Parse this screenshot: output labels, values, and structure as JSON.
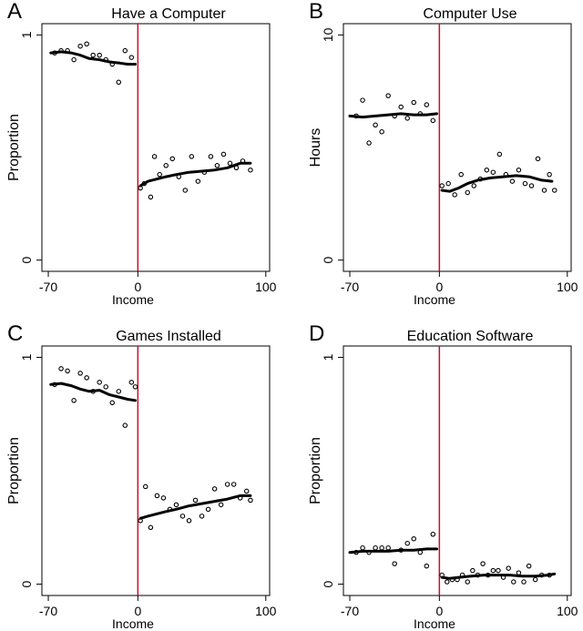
{
  "chart_data": [
    {
      "type": "scatter",
      "panel_letter": "A",
      "title": "Have a Computer",
      "xlabel": "Income",
      "ylabel": "Proportion",
      "xlim": [
        -75,
        103
      ],
      "ylim": [
        -0.05,
        1.05
      ],
      "xticks": [
        {
          "value": -70,
          "label": "-70"
        },
        {
          "value": 0,
          "label": "0"
        },
        {
          "value": 100,
          "label": "100"
        }
      ],
      "yticks": [
        {
          "value": 0,
          "label": "0"
        },
        {
          "value": 1,
          "label": "1"
        }
      ],
      "threshold": 0,
      "threshold_color": "#c8102e",
      "points": [
        [
          -65,
          0.92
        ],
        [
          -60,
          0.93
        ],
        [
          -55,
          0.93
        ],
        [
          -50,
          0.89
        ],
        [
          -45,
          0.95
        ],
        [
          -40,
          0.96
        ],
        [
          -35,
          0.91
        ],
        [
          -30,
          0.91
        ],
        [
          -25,
          0.89
        ],
        [
          -20,
          0.87
        ],
        [
          -15,
          0.79
        ],
        [
          -10,
          0.93
        ],
        [
          -5,
          0.9
        ],
        [
          2,
          0.32
        ],
        [
          5,
          0.34
        ],
        [
          10,
          0.28
        ],
        [
          13,
          0.46
        ],
        [
          17,
          0.38
        ],
        [
          22,
          0.42
        ],
        [
          27,
          0.45
        ],
        [
          32,
          0.37
        ],
        [
          37,
          0.31
        ],
        [
          42,
          0.46
        ],
        [
          47,
          0.35
        ],
        [
          52,
          0.39
        ],
        [
          57,
          0.46
        ],
        [
          62,
          0.42
        ],
        [
          67,
          0.47
        ],
        [
          72,
          0.43
        ],
        [
          77,
          0.41
        ],
        [
          82,
          0.44
        ],
        [
          88,
          0.4
        ]
      ],
      "fit_left": [
        [
          -68,
          0.92
        ],
        [
          -60,
          0.925
        ],
        [
          -52,
          0.92
        ],
        [
          -45,
          0.91
        ],
        [
          -38,
          0.895
        ],
        [
          -30,
          0.89
        ],
        [
          -22,
          0.88
        ],
        [
          -14,
          0.875
        ],
        [
          -8,
          0.87
        ],
        [
          -2,
          0.87
        ]
      ],
      "fit_right": [
        [
          2,
          0.33
        ],
        [
          8,
          0.35
        ],
        [
          15,
          0.36
        ],
        [
          22,
          0.37
        ],
        [
          30,
          0.38
        ],
        [
          40,
          0.39
        ],
        [
          50,
          0.395
        ],
        [
          60,
          0.4
        ],
        [
          70,
          0.41
        ],
        [
          80,
          0.43
        ],
        [
          88,
          0.43
        ]
      ]
    },
    {
      "type": "scatter",
      "panel_letter": "B",
      "title": "Computer Use",
      "xlabel": "Income",
      "ylabel": "Hours",
      "xlim": [
        -75,
        103
      ],
      "ylim": [
        -0.5,
        10.5
      ],
      "xticks": [
        {
          "value": -70,
          "label": "-70"
        },
        {
          "value": 0,
          "label": "0"
        },
        {
          "value": 100,
          "label": "100"
        }
      ],
      "yticks": [
        {
          "value": 0,
          "label": "0"
        },
        {
          "value": 10,
          "label": "10"
        }
      ],
      "threshold": 0,
      "threshold_color": "#c8102e",
      "points": [
        [
          -65,
          6.4
        ],
        [
          -60,
          7.1
        ],
        [
          -55,
          5.2
        ],
        [
          -50,
          6.0
        ],
        [
          -45,
          5.7
        ],
        [
          -40,
          7.3
        ],
        [
          -35,
          6.4
        ],
        [
          -30,
          6.8
        ],
        [
          -25,
          6.3
        ],
        [
          -20,
          7.0
        ],
        [
          -15,
          6.5
        ],
        [
          -10,
          6.9
        ],
        [
          -5,
          6.2
        ],
        [
          2,
          3.3
        ],
        [
          7,
          3.4
        ],
        [
          12,
          2.9
        ],
        [
          17,
          3.8
        ],
        [
          22,
          3.0
        ],
        [
          27,
          3.3
        ],
        [
          32,
          3.6
        ],
        [
          37,
          4.0
        ],
        [
          42,
          3.9
        ],
        [
          47,
          4.7
        ],
        [
          52,
          3.8
        ],
        [
          57,
          3.5
        ],
        [
          62,
          4.0
        ],
        [
          67,
          3.4
        ],
        [
          72,
          3.3
        ],
        [
          77,
          4.5
        ],
        [
          82,
          3.1
        ],
        [
          86,
          3.8
        ],
        [
          90,
          3.1
        ]
      ],
      "fit_left": [
        [
          -70,
          6.4
        ],
        [
          -60,
          6.35
        ],
        [
          -50,
          6.4
        ],
        [
          -40,
          6.45
        ],
        [
          -30,
          6.5
        ],
        [
          -20,
          6.45
        ],
        [
          -10,
          6.45
        ],
        [
          -2,
          6.5
        ]
      ],
      "fit_right": [
        [
          2,
          3.1
        ],
        [
          8,
          3.05
        ],
        [
          15,
          3.2
        ],
        [
          22,
          3.4
        ],
        [
          30,
          3.55
        ],
        [
          40,
          3.65
        ],
        [
          50,
          3.7
        ],
        [
          60,
          3.75
        ],
        [
          70,
          3.7
        ],
        [
          80,
          3.55
        ],
        [
          88,
          3.5
        ]
      ]
    },
    {
      "type": "scatter",
      "panel_letter": "C",
      "title": "Games Installed",
      "xlabel": "Income",
      "ylabel": "Proportion",
      "xlim": [
        -75,
        103
      ],
      "ylim": [
        -0.05,
        1.05
      ],
      "xticks": [
        {
          "value": -70,
          "label": "-70"
        },
        {
          "value": 0,
          "label": "0"
        },
        {
          "value": 100,
          "label": "100"
        }
      ],
      "yticks": [
        {
          "value": 0,
          "label": "0"
        },
        {
          "value": 1,
          "label": "1"
        }
      ],
      "threshold": 0,
      "threshold_color": "#c8102e",
      "points": [
        [
          -65,
          0.88
        ],
        [
          -60,
          0.95
        ],
        [
          -55,
          0.94
        ],
        [
          -50,
          0.81
        ],
        [
          -45,
          0.93
        ],
        [
          -40,
          0.91
        ],
        [
          -35,
          0.85
        ],
        [
          -30,
          0.89
        ],
        [
          -25,
          0.87
        ],
        [
          -20,
          0.8
        ],
        [
          -15,
          0.85
        ],
        [
          -10,
          0.7
        ],
        [
          -5,
          0.89
        ],
        [
          -2,
          0.87
        ],
        [
          2,
          0.28
        ],
        [
          6,
          0.43
        ],
        [
          10,
          0.25
        ],
        [
          15,
          0.39
        ],
        [
          20,
          0.38
        ],
        [
          25,
          0.33
        ],
        [
          30,
          0.35
        ],
        [
          35,
          0.3
        ],
        [
          40,
          0.28
        ],
        [
          45,
          0.37
        ],
        [
          50,
          0.3
        ],
        [
          55,
          0.33
        ],
        [
          60,
          0.42
        ],
        [
          65,
          0.35
        ],
        [
          70,
          0.44
        ],
        [
          75,
          0.44
        ],
        [
          80,
          0.38
        ],
        [
          85,
          0.41
        ],
        [
          88,
          0.37
        ]
      ],
      "fit_left": [
        [
          -68,
          0.88
        ],
        [
          -60,
          0.885
        ],
        [
          -52,
          0.875
        ],
        [
          -45,
          0.86
        ],
        [
          -38,
          0.85
        ],
        [
          -30,
          0.855
        ],
        [
          -22,
          0.835
        ],
        [
          -15,
          0.825
        ],
        [
          -8,
          0.815
        ],
        [
          -2,
          0.81
        ]
      ],
      "fit_right": [
        [
          2,
          0.29
        ],
        [
          8,
          0.3
        ],
        [
          15,
          0.31
        ],
        [
          22,
          0.32
        ],
        [
          30,
          0.33
        ],
        [
          40,
          0.345
        ],
        [
          50,
          0.355
        ],
        [
          60,
          0.365
        ],
        [
          70,
          0.375
        ],
        [
          80,
          0.39
        ],
        [
          88,
          0.39
        ]
      ]
    },
    {
      "type": "scatter",
      "panel_letter": "D",
      "title": "Education Software",
      "xlabel": "Income",
      "ylabel": "Proportion",
      "xlim": [
        -75,
        103
      ],
      "ylim": [
        -0.05,
        1.05
      ],
      "xticks": [
        {
          "value": -70,
          "label": "-70"
        },
        {
          "value": 0,
          "label": "0"
        },
        {
          "value": 100,
          "label": "100"
        }
      ],
      "yticks": [
        {
          "value": 0,
          "label": "0"
        },
        {
          "value": 1,
          "label": "1"
        }
      ],
      "threshold": 0,
      "threshold_color": "#c8102e",
      "points": [
        [
          -65,
          0.14
        ],
        [
          -60,
          0.16
        ],
        [
          -55,
          0.14
        ],
        [
          -50,
          0.16
        ],
        [
          -45,
          0.16
        ],
        [
          -40,
          0.16
        ],
        [
          -35,
          0.09
        ],
        [
          -30,
          0.15
        ],
        [
          -25,
          0.18
        ],
        [
          -20,
          0.2
        ],
        [
          -15,
          0.14
        ],
        [
          -10,
          0.08
        ],
        [
          -5,
          0.22
        ],
        [
          2,
          0.04
        ],
        [
          6,
          0.01
        ],
        [
          10,
          0.02
        ],
        [
          14,
          0.02
        ],
        [
          18,
          0.04
        ],
        [
          22,
          0.01
        ],
        [
          26,
          0.06
        ],
        [
          30,
          0.04
        ],
        [
          34,
          0.09
        ],
        [
          38,
          0.04
        ],
        [
          42,
          0.06
        ],
        [
          46,
          0.06
        ],
        [
          50,
          0.03
        ],
        [
          54,
          0.07
        ],
        [
          58,
          0.01
        ],
        [
          62,
          0.05
        ],
        [
          66,
          0.01
        ],
        [
          70,
          0.08
        ],
        [
          75,
          0.02
        ],
        [
          80,
          0.04
        ],
        [
          86,
          0.04
        ]
      ],
      "fit_left": [
        [
          -70,
          0.14
        ],
        [
          -60,
          0.145
        ],
        [
          -50,
          0.145
        ],
        [
          -40,
          0.145
        ],
        [
          -30,
          0.15
        ],
        [
          -20,
          0.15
        ],
        [
          -10,
          0.155
        ],
        [
          -2,
          0.155
        ]
      ],
      "fit_right": [
        [
          2,
          0.03
        ],
        [
          8,
          0.025
        ],
        [
          15,
          0.03
        ],
        [
          25,
          0.035
        ],
        [
          35,
          0.04
        ],
        [
          45,
          0.04
        ],
        [
          55,
          0.04
        ],
        [
          65,
          0.035
        ],
        [
          75,
          0.035
        ],
        [
          85,
          0.04
        ],
        [
          90,
          0.045
        ]
      ]
    }
  ]
}
